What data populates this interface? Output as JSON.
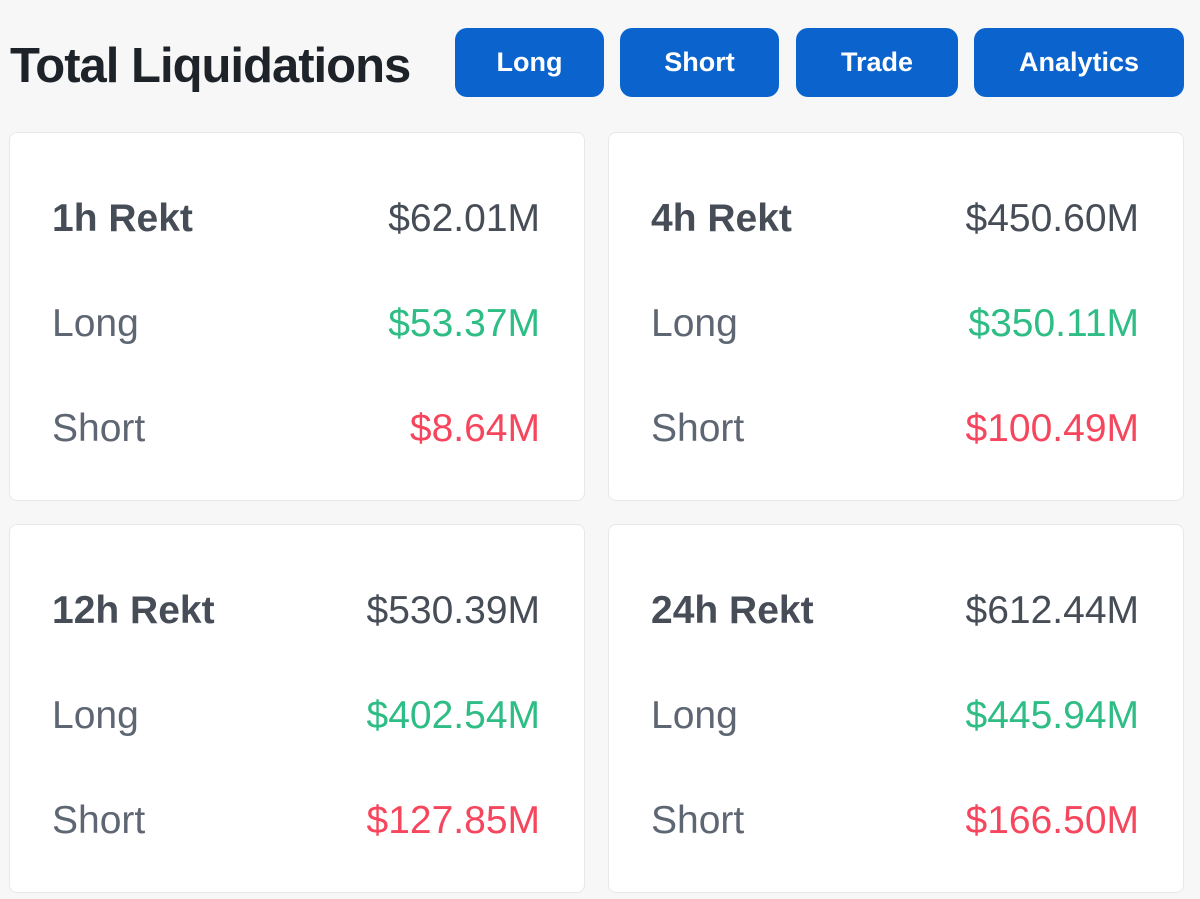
{
  "header": {
    "title": "Total Liquidations",
    "buttons": [
      "Long",
      "Short",
      "Trade",
      "Analytics"
    ],
    "button_color": "#0b63ce"
  },
  "colors": {
    "long": "#2ebd85",
    "short": "#f6465d"
  },
  "cards": [
    {
      "title": "1h Rekt",
      "total": "$62.01M",
      "long_label": "Long",
      "long": "$53.37M",
      "short_label": "Short",
      "short": "$8.64M"
    },
    {
      "title": "4h Rekt",
      "total": "$450.60M",
      "long_label": "Long",
      "long": "$350.11M",
      "short_label": "Short",
      "short": "$100.49M"
    },
    {
      "title": "12h Rekt",
      "total": "$530.39M",
      "long_label": "Long",
      "long": "$402.54M",
      "short_label": "Short",
      "short": "$127.85M"
    },
    {
      "title": "24h Rekt",
      "total": "$612.44M",
      "long_label": "Long",
      "long": "$445.94M",
      "short_label": "Short",
      "short": "$166.50M"
    }
  ]
}
